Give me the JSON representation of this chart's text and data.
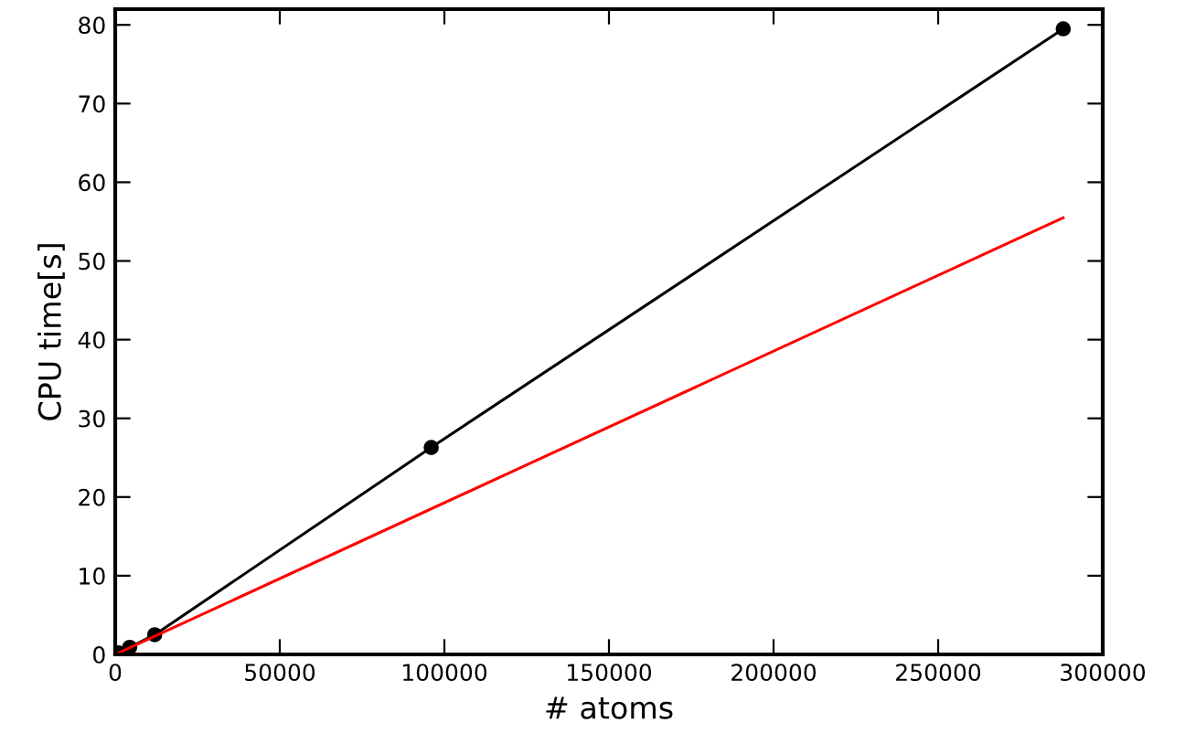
{
  "chart_data": {
    "type": "line",
    "xlabel": "# atoms",
    "ylabel": "CPU time[s]",
    "xlim": [
      0,
      300000
    ],
    "ylim": [
      0,
      82
    ],
    "xticks": [
      0,
      50000,
      100000,
      150000,
      200000,
      250000,
      300000
    ],
    "yticks": [
      0,
      10,
      20,
      30,
      40,
      50,
      60,
      70,
      80
    ],
    "grid": false,
    "legend": false,
    "series": [
      {
        "color": "#000000",
        "marker": "circle",
        "x": [
          0,
          1000,
          4400,
          12000,
          96000,
          288000
        ],
        "values": [
          0,
          0.2,
          0.9,
          2.5,
          26.3,
          79.5
        ]
      },
      {
        "color": "#ff0000",
        "marker": "none",
        "x": [
          0,
          288000
        ],
        "values": [
          0,
          55.5
        ]
      }
    ]
  }
}
